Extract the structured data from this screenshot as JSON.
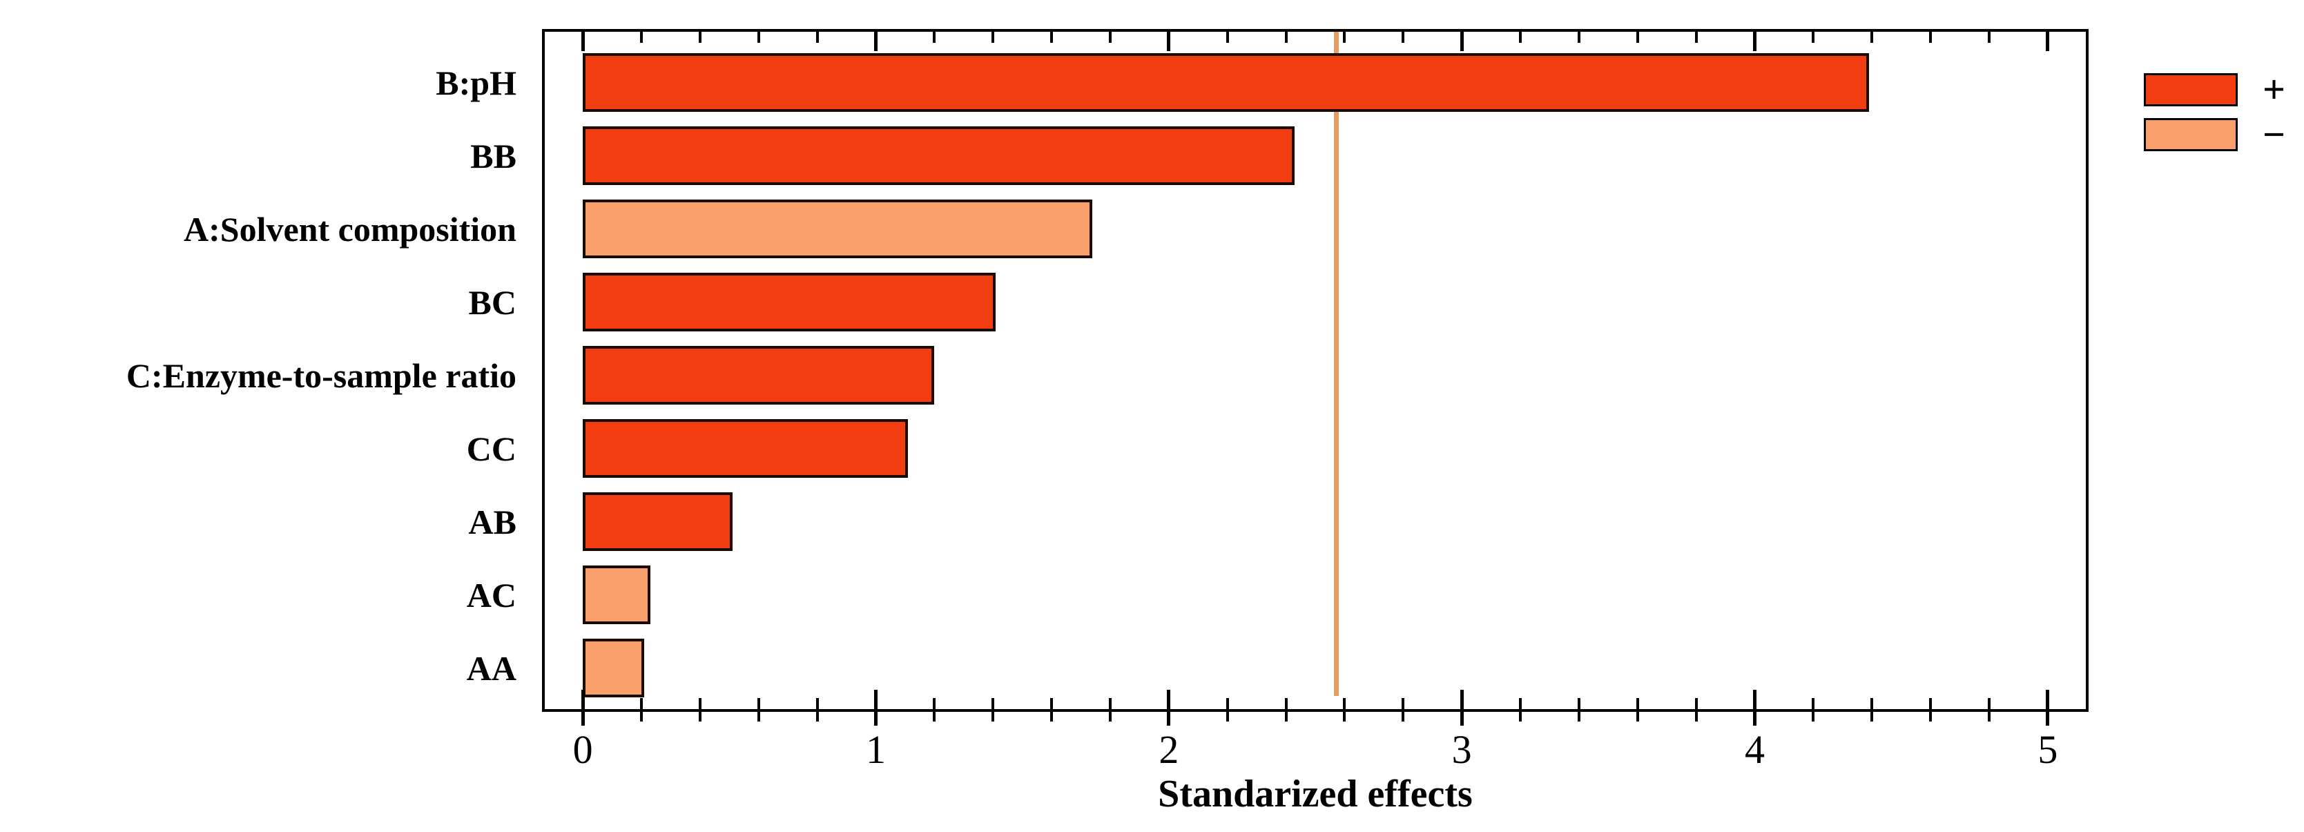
{
  "chart_data": {
    "type": "bar",
    "orientation": "horizontal",
    "title": "",
    "xlabel": "Standarized effects",
    "ylabel": "",
    "categories": [
      "B:pH",
      "BB",
      "A:Solvent composition",
      "BC",
      "C:Enzyme-to-sample ratio",
      "CC",
      "AB",
      "AC",
      "AA"
    ],
    "values": [
      4.39,
      2.43,
      1.74,
      1.41,
      1.2,
      1.11,
      0.51,
      0.23,
      0.21
    ],
    "signs": [
      "+",
      "+",
      "-",
      "+",
      "+",
      "+",
      "+",
      "-",
      "-"
    ],
    "reference_line": 2.57,
    "x_ticks": [
      0,
      1,
      2,
      3,
      4,
      5
    ],
    "x_tick_labels": [
      "0",
      "1",
      "2",
      "3",
      "4",
      "5"
    ],
    "minor_tick_step": 0.2,
    "xlim": [
      -0.13,
      5.13
    ],
    "grid": false,
    "legend": {
      "position": "top-right",
      "entries": [
        {
          "label": "+",
          "color": "#F23D10"
        },
        {
          "label": "−",
          "color": "#F89F6C"
        }
      ]
    },
    "colors": {
      "plus": "#F23D10",
      "minus": "#F89F6C",
      "reference_line": "#E59E62",
      "bar_border": "#1a0b02",
      "axis": "#000000",
      "text": "#000000"
    }
  }
}
